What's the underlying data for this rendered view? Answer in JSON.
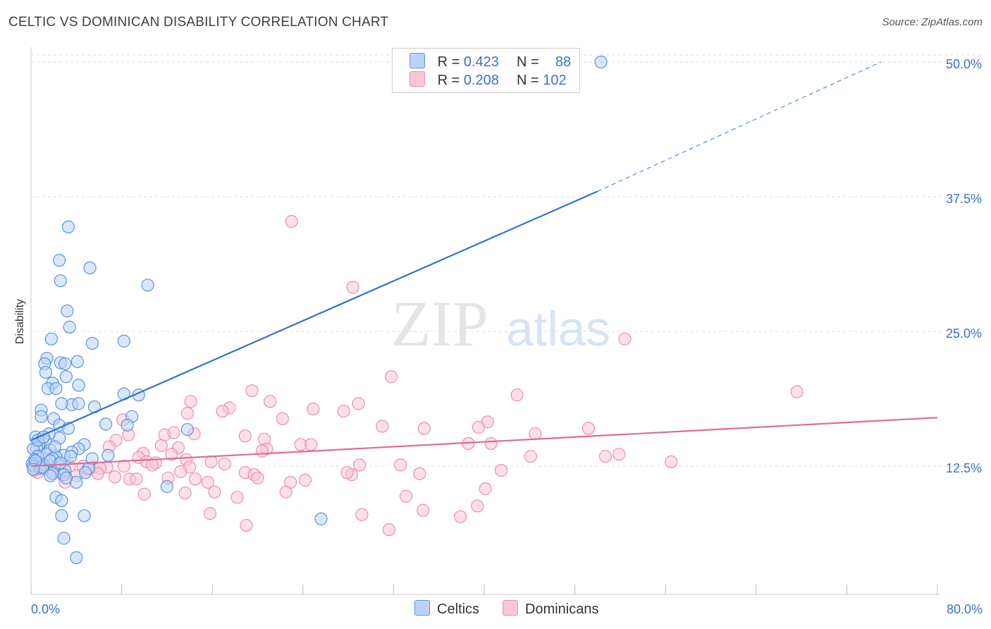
{
  "header": {
    "title": "CELTIC VS DOMINICAN DISABILITY CORRELATION CHART",
    "source": "Source: ZipAtlas.com"
  },
  "watermark": {
    "zip": "ZIP",
    "atlas": "atlas"
  },
  "legend": {
    "celtic": {
      "r_label": "R =",
      "r_value": "0.423",
      "n_label": "N =",
      "n_value": "88"
    },
    "dominican": {
      "r_label": "R =",
      "r_value": "0.208",
      "n_label": "N =",
      "n_value": "102"
    }
  },
  "bottom_legend": {
    "celtic": "Celtics",
    "dominican": "Dominicans"
  },
  "colors": {
    "celtic_fill": "#b9d3f7",
    "celtic_stroke": "#5b93de",
    "celtic_line": "#2e73d2",
    "dominican_fill": "#fbc7d6",
    "dominican_stroke": "#ea8fab",
    "dominican_line": "#e06b98",
    "tick_text": "#3a73c8",
    "grid": "#dddddd"
  },
  "chart_data": {
    "type": "scatter",
    "title": "CELTIC VS DOMINICAN DISABILITY CORRELATION CHART",
    "xlabel": "",
    "ylabel": "Disability",
    "xlim": [
      0,
      80
    ],
    "ylim": [
      0,
      50
    ],
    "x_tick_labels": [
      "0.0%",
      "80.0%"
    ],
    "y_ticks": [
      12.5,
      25.0,
      37.5,
      50.0
    ],
    "y_tick_labels": [
      "12.5%",
      "25.0%",
      "37.5%",
      "50.0%"
    ],
    "grid": true,
    "legend_position": "top-center",
    "series": [
      {
        "name": "Celtics",
        "r": 0.423,
        "n": 88,
        "trend": {
          "x0": 0,
          "y0": 14.9,
          "x1": 50,
          "y1": 38.0,
          "dashed_to": {
            "x": 75,
            "y": 50
          }
        },
        "points": [
          [
            50.3,
            50.0
          ],
          [
            3.3,
            34.7
          ],
          [
            2.5,
            31.6
          ],
          [
            5.2,
            30.9
          ],
          [
            10.3,
            29.3
          ],
          [
            2.6,
            29.7
          ],
          [
            3.2,
            26.9
          ],
          [
            3.4,
            25.4
          ],
          [
            1.8,
            24.3
          ],
          [
            5.4,
            23.9
          ],
          [
            8.2,
            24.1
          ],
          [
            1.4,
            22.5
          ],
          [
            2.6,
            22.1
          ],
          [
            3.0,
            22.0
          ],
          [
            4.1,
            22.2
          ],
          [
            1.2,
            22.0
          ],
          [
            1.3,
            21.2
          ],
          [
            3.1,
            20.8
          ],
          [
            1.9,
            20.2
          ],
          [
            4.2,
            20.0
          ],
          [
            1.5,
            19.7
          ],
          [
            2.2,
            19.7
          ],
          [
            8.2,
            19.2
          ],
          [
            9.5,
            19.1
          ],
          [
            3.6,
            18.2
          ],
          [
            5.6,
            18.0
          ],
          [
            4.2,
            18.3
          ],
          [
            0.9,
            17.7
          ],
          [
            2.7,
            18.3
          ],
          [
            0.9,
            17.1
          ],
          [
            2.0,
            16.9
          ],
          [
            8.9,
            17.1
          ],
          [
            2.5,
            16.3
          ],
          [
            6.6,
            16.4
          ],
          [
            8.5,
            16.3
          ],
          [
            3.3,
            16.0
          ],
          [
            13.8,
            15.9
          ],
          [
            0.4,
            15.2
          ],
          [
            1.0,
            15.0
          ],
          [
            2.5,
            15.1
          ],
          [
            1.6,
            15.5
          ],
          [
            4.7,
            14.5
          ],
          [
            1.3,
            14.8
          ],
          [
            0.7,
            14.5
          ],
          [
            0.5,
            14.2
          ],
          [
            1.7,
            14.0
          ],
          [
            0.2,
            14.1
          ],
          [
            4.2,
            14.1
          ],
          [
            3.6,
            13.8
          ],
          [
            1.4,
            13.6
          ],
          [
            2.9,
            13.5
          ],
          [
            2.2,
            13.4
          ],
          [
            0.6,
            13.4
          ],
          [
            6.8,
            13.5
          ],
          [
            0.3,
            13.1
          ],
          [
            1.9,
            13.2
          ],
          [
            2.4,
            12.7
          ],
          [
            5.4,
            13.2
          ],
          [
            0.5,
            12.8
          ],
          [
            0.1,
            12.7
          ],
          [
            1.1,
            12.6
          ],
          [
            0.2,
            12.5
          ],
          [
            0.8,
            12.3
          ],
          [
            5.1,
            12.3
          ],
          [
            3.0,
            12.1
          ],
          [
            1.9,
            11.8
          ],
          [
            4.8,
            11.9
          ],
          [
            2.9,
            11.7
          ],
          [
            1.7,
            11.6
          ],
          [
            4.0,
            11.0
          ],
          [
            3.1,
            11.4
          ],
          [
            12.0,
            10.6
          ],
          [
            2.2,
            9.6
          ],
          [
            2.7,
            9.3
          ],
          [
            4.7,
            7.9
          ],
          [
            2.7,
            7.9
          ],
          [
            25.6,
            7.6
          ],
          [
            2.9,
            5.8
          ],
          [
            4.0,
            4.0
          ],
          [
            1.0,
            12.4
          ],
          [
            1.7,
            13.0
          ],
          [
            2.6,
            12.8
          ],
          [
            0.4,
            13.0
          ],
          [
            3.5,
            13.4
          ],
          [
            0.6,
            14.9
          ],
          [
            1.1,
            15.2
          ],
          [
            2.1,
            14.3
          ],
          [
            0.2,
            12.2
          ]
        ]
      },
      {
        "name": "Dominicans",
        "r": 0.208,
        "n": 102,
        "trend": {
          "x0": 0,
          "y0": 12.5,
          "x1": 80,
          "y1": 17.0
        },
        "points": [
          [
            23.0,
            35.2
          ],
          [
            28.4,
            29.1
          ],
          [
            52.4,
            24.3
          ],
          [
            31.8,
            20.8
          ],
          [
            67.6,
            19.4
          ],
          [
            42.9,
            19.1
          ],
          [
            19.5,
            19.5
          ],
          [
            14.1,
            18.5
          ],
          [
            21.1,
            18.5
          ],
          [
            28.9,
            18.3
          ],
          [
            24.9,
            17.8
          ],
          [
            17.5,
            17.9
          ],
          [
            27.6,
            17.6
          ],
          [
            16.9,
            17.6
          ],
          [
            13.8,
            17.4
          ],
          [
            8.1,
            16.8
          ],
          [
            22.2,
            16.9
          ],
          [
            40.3,
            16.6
          ],
          [
            31.0,
            16.2
          ],
          [
            34.7,
            16.0
          ],
          [
            39.5,
            16.1
          ],
          [
            49.2,
            16.0
          ],
          [
            8.6,
            15.4
          ],
          [
            11.8,
            15.4
          ],
          [
            14.4,
            15.5
          ],
          [
            12.6,
            15.6
          ],
          [
            18.9,
            15.3
          ],
          [
            20.6,
            15.0
          ],
          [
            44.5,
            15.5
          ],
          [
            7.5,
            14.9
          ],
          [
            23.8,
            14.5
          ],
          [
            24.7,
            14.5
          ],
          [
            38.6,
            14.6
          ],
          [
            40.6,
            14.6
          ],
          [
            6.9,
            14.3
          ],
          [
            11.5,
            14.4
          ],
          [
            13.0,
            14.2
          ],
          [
            20.8,
            14.1
          ],
          [
            20.4,
            13.9
          ],
          [
            9.9,
            13.7
          ],
          [
            12.4,
            13.6
          ],
          [
            50.7,
            13.4
          ],
          [
            51.9,
            13.6
          ],
          [
            44.1,
            13.4
          ],
          [
            9.5,
            13.3
          ],
          [
            13.7,
            13.1
          ],
          [
            15.9,
            12.9
          ],
          [
            17.1,
            12.7
          ],
          [
            10.2,
            12.9
          ],
          [
            11.0,
            12.8
          ],
          [
            29.0,
            12.6
          ],
          [
            32.6,
            12.6
          ],
          [
            56.5,
            12.9
          ],
          [
            6.7,
            12.4
          ],
          [
            8.2,
            12.5
          ],
          [
            10.7,
            12.6
          ],
          [
            14.0,
            12.4
          ],
          [
            5.5,
            12.4
          ],
          [
            3.4,
            12.5
          ],
          [
            4.6,
            12.5
          ],
          [
            5.0,
            12.2
          ],
          [
            2.4,
            12.0
          ],
          [
            6.1,
            12.3
          ],
          [
            13.2,
            12.0
          ],
          [
            18.9,
            11.9
          ],
          [
            19.7,
            11.7
          ],
          [
            28.3,
            11.7
          ],
          [
            34.3,
            11.8
          ],
          [
            27.9,
            11.9
          ],
          [
            41.5,
            12.1
          ],
          [
            1.0,
            12.4
          ],
          [
            1.7,
            12.1
          ],
          [
            2.8,
            11.7
          ],
          [
            7.4,
            11.5
          ],
          [
            8.7,
            11.3
          ],
          [
            9.3,
            11.3
          ],
          [
            12.1,
            11.4
          ],
          [
            14.5,
            11.3
          ],
          [
            15.6,
            11.0
          ],
          [
            20.0,
            11.4
          ],
          [
            22.9,
            11.0
          ],
          [
            24.2,
            11.2
          ],
          [
            16.2,
            10.1
          ],
          [
            22.5,
            10.1
          ],
          [
            10.0,
            9.9
          ],
          [
            13.6,
            10.0
          ],
          [
            18.2,
            9.6
          ],
          [
            33.1,
            9.7
          ],
          [
            40.1,
            10.4
          ],
          [
            34.6,
            8.4
          ],
          [
            39.4,
            8.8
          ],
          [
            15.8,
            8.1
          ],
          [
            29.2,
            8.0
          ],
          [
            37.9,
            7.8
          ],
          [
            19.0,
            7.0
          ],
          [
            31.6,
            6.6
          ],
          [
            3.0,
            11.0
          ],
          [
            4.0,
            11.6
          ],
          [
            2.0,
            11.9
          ],
          [
            0.6,
            11.9
          ],
          [
            5.9,
            11.8
          ],
          [
            0.3,
            12.1
          ]
        ]
      }
    ]
  }
}
